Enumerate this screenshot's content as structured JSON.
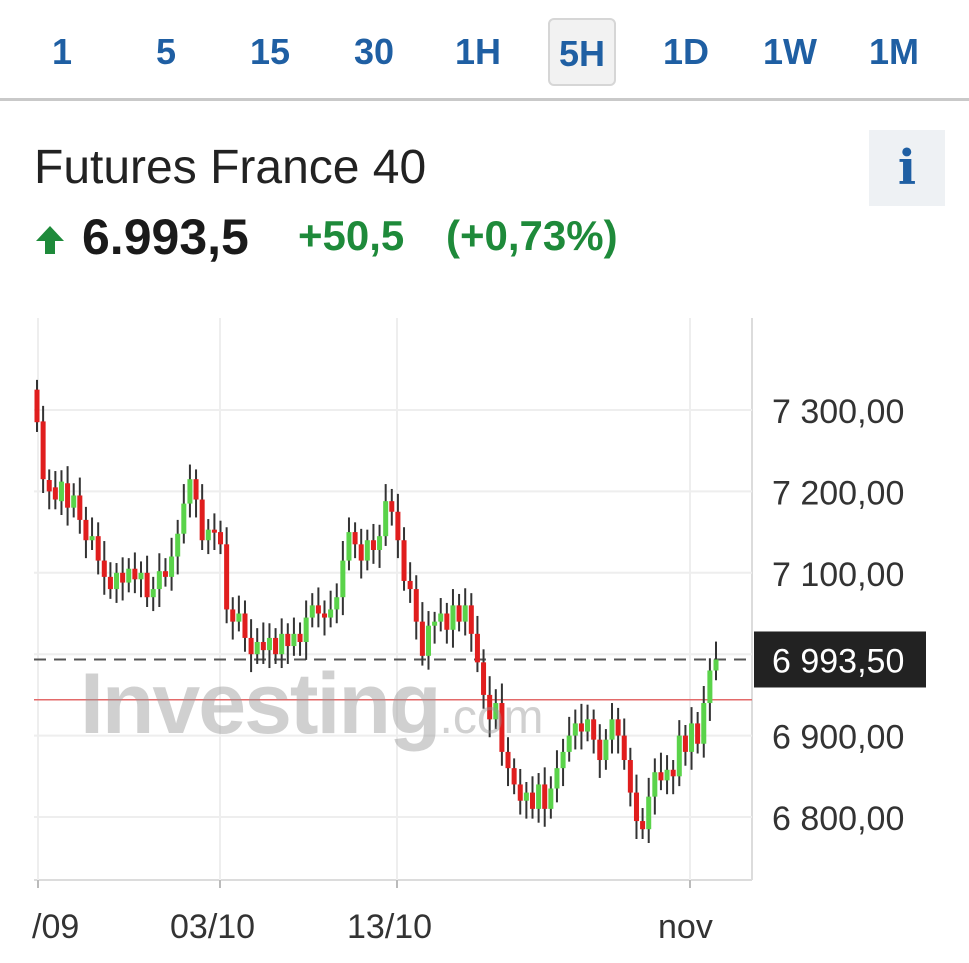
{
  "timeframes": {
    "items": [
      "1",
      "5",
      "15",
      "30",
      "1H",
      "5H",
      "1D",
      "1W",
      "1M"
    ],
    "active": "5H"
  },
  "instrument": {
    "name": "Futures France 40",
    "price": "6.993,5",
    "change": "+50,5",
    "change_pct": "(+0,73%)",
    "direction": "up",
    "info_label": "i"
  },
  "colors": {
    "accent": "#1f5fa3",
    "up": "#5ad34a",
    "down": "#e01e1e",
    "positive_text": "#1e8a3a",
    "price_label_bg": "#222222"
  },
  "watermark": {
    "main": "Investing",
    "suffix": ".com"
  },
  "icons": {
    "direction": "arrow-up-icon",
    "info": "info-icon"
  },
  "chart_data": {
    "type": "candlestick",
    "x_tick_labels": [
      "/09",
      "03/10",
      "13/10",
      "nov"
    ],
    "y_tick_labels": [
      "7 300,00",
      "7 200,00",
      "7 100,00",
      "6 900,00",
      "6 800,00"
    ],
    "y_ticks": [
      7300,
      7200,
      7100,
      6900,
      6800
    ],
    "ylim": [
      6720,
      7390
    ],
    "current_price": 6993.5,
    "current_price_label": "6 993,50",
    "reference_level": 6944,
    "grid": true,
    "candles": [
      [
        7325,
        7285
      ],
      [
        7286,
        7215
      ],
      [
        7214,
        7200
      ],
      [
        7205,
        7190
      ],
      [
        7188,
        7212
      ],
      [
        7210,
        7180
      ],
      [
        7180,
        7195
      ],
      [
        7195,
        7165
      ],
      [
        7165,
        7140
      ],
      [
        7140,
        7145
      ],
      [
        7145,
        7115
      ],
      [
        7115,
        7095
      ],
      [
        7095,
        7080
      ],
      [
        7080,
        7100
      ],
      [
        7100,
        7088
      ],
      [
        7088,
        7105
      ],
      [
        7105,
        7092
      ],
      [
        7092,
        7100
      ],
      [
        7100,
        7070
      ],
      [
        7070,
        7080
      ],
      [
        7080,
        7102
      ],
      [
        7102,
        7095
      ],
      [
        7095,
        7120
      ],
      [
        7120,
        7148
      ],
      [
        7148,
        7185
      ],
      [
        7185,
        7215
      ],
      [
        7215,
        7190
      ],
      [
        7190,
        7140
      ],
      [
        7140,
        7153
      ],
      [
        7153,
        7150
      ],
      [
        7150,
        7135
      ],
      [
        7135,
        7055
      ],
      [
        7055,
        7040
      ],
      [
        7040,
        7050
      ],
      [
        7050,
        7020
      ],
      [
        7020,
        7000
      ],
      [
        7000,
        7015
      ],
      [
        7015,
        7005
      ],
      [
        7005,
        7020
      ],
      [
        7020,
        7000
      ],
      [
        7000,
        7025
      ],
      [
        7025,
        7010
      ],
      [
        7010,
        7025
      ],
      [
        7025,
        7015
      ],
      [
        7015,
        7045
      ],
      [
        7045,
        7060
      ],
      [
        7060,
        7050
      ],
      [
        7050,
        7045
      ],
      [
        7045,
        7055
      ],
      [
        7055,
        7070
      ],
      [
        7070,
        7115
      ],
      [
        7115,
        7150
      ],
      [
        7150,
        7135
      ],
      [
        7135,
        7115
      ],
      [
        7115,
        7140
      ],
      [
        7140,
        7128
      ],
      [
        7128,
        7145
      ],
      [
        7145,
        7188
      ],
      [
        7188,
        7175
      ],
      [
        7175,
        7140
      ],
      [
        7140,
        7090
      ],
      [
        7090,
        7080
      ],
      [
        7080,
        7040
      ],
      [
        7040,
        6998
      ],
      [
        6998,
        7035
      ],
      [
        7035,
        7040
      ],
      [
        7040,
        7050
      ],
      [
        7050,
        7030
      ],
      [
        7030,
        7060
      ],
      [
        7060,
        7040
      ],
      [
        7040,
        7060
      ],
      [
        7060,
        7025
      ],
      [
        7025,
        6990
      ],
      [
        6990,
        6950
      ],
      [
        6950,
        6920
      ],
      [
        6920,
        6940
      ],
      [
        6940,
        6880
      ],
      [
        6880,
        6860
      ],
      [
        6860,
        6840
      ],
      [
        6840,
        6820
      ],
      [
        6820,
        6830
      ],
      [
        6830,
        6810
      ],
      [
        6810,
        6840
      ],
      [
        6840,
        6810
      ],
      [
        6810,
        6835
      ],
      [
        6835,
        6860
      ],
      [
        6860,
        6880
      ],
      [
        6880,
        6900
      ],
      [
        6900,
        6915
      ],
      [
        6915,
        6905
      ],
      [
        6905,
        6920
      ],
      [
        6920,
        6895
      ],
      [
        6895,
        6870
      ],
      [
        6870,
        6895
      ],
      [
        6895,
        6920
      ],
      [
        6920,
        6900
      ],
      [
        6900,
        6870
      ],
      [
        6870,
        6830
      ],
      [
        6830,
        6795
      ],
      [
        6795,
        6785
      ],
      [
        6785,
        6825
      ],
      [
        6825,
        6855
      ],
      [
        6855,
        6845
      ],
      [
        6845,
        6858
      ],
      [
        6858,
        6850
      ],
      [
        6850,
        6900
      ],
      [
        6900,
        6880
      ],
      [
        6880,
        6915
      ],
      [
        6915,
        6890
      ],
      [
        6890,
        6940
      ],
      [
        6940,
        6980
      ],
      [
        6980,
        6993.5
      ]
    ]
  }
}
